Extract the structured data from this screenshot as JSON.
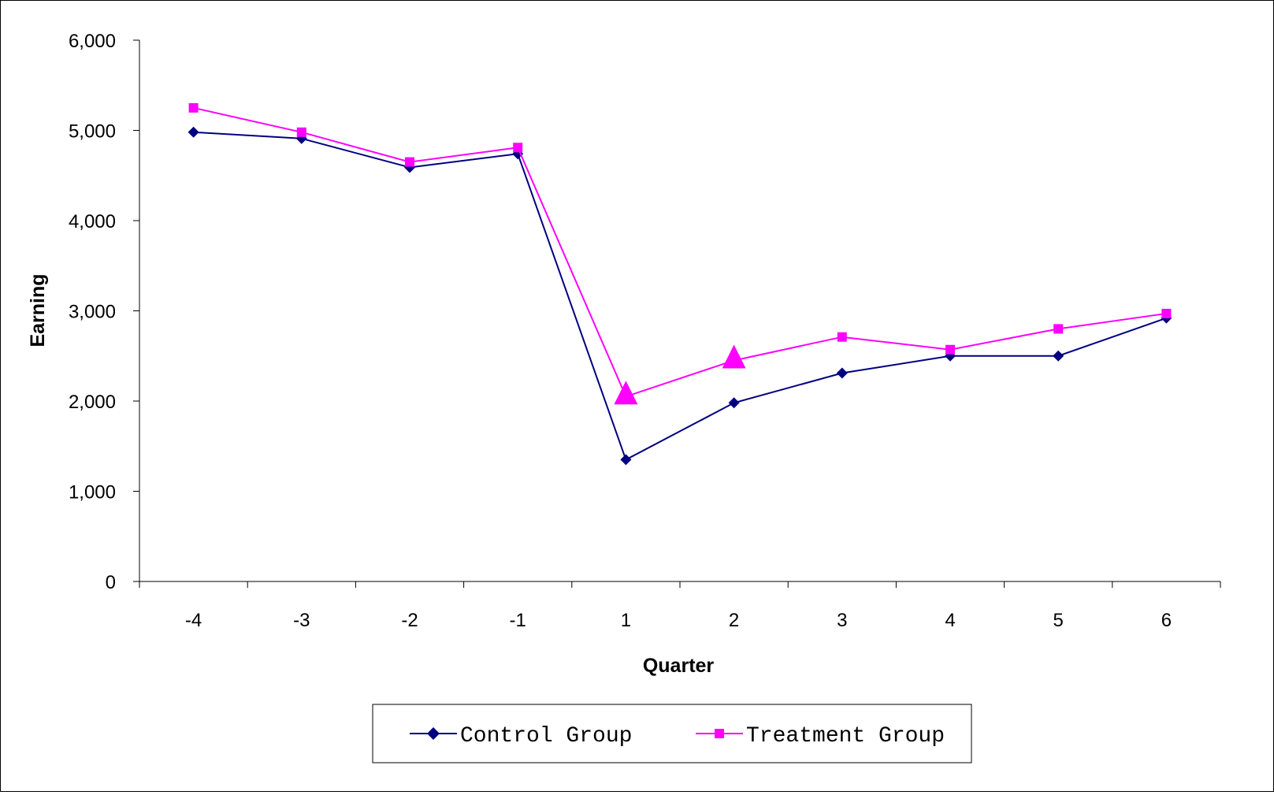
{
  "chart_data": {
    "type": "line",
    "title": "",
    "xlabel": "Quarter",
    "ylabel": "Earning",
    "categories": [
      "-4",
      "-3",
      "-2",
      "-1",
      "1",
      "2",
      "3",
      "4",
      "5",
      "6"
    ],
    "ylim": [
      0,
      6000
    ],
    "yticks": [
      "0",
      "1,000",
      "2,000",
      "3,000",
      "4,000",
      "5,000",
      "6,000"
    ],
    "ytick_values": [
      0,
      1000,
      2000,
      3000,
      4000,
      5000,
      6000
    ],
    "grid": false,
    "legend_position": "bottom",
    "series": [
      {
        "name": "Control Group",
        "color": "#000080",
        "marker": "diamond",
        "values": [
          4980,
          4910,
          4590,
          4740,
          1350,
          1980,
          2310,
          2500,
          2500,
          2920
        ]
      },
      {
        "name": "Treatment Group",
        "color": "#FF00FF",
        "marker": "square",
        "values": [
          5250,
          4980,
          4650,
          4810,
          2050,
          2450,
          2710,
          2570,
          2800,
          2970
        ],
        "highlight_indices": [
          4,
          5
        ],
        "highlight_marker": "triangle"
      }
    ]
  }
}
